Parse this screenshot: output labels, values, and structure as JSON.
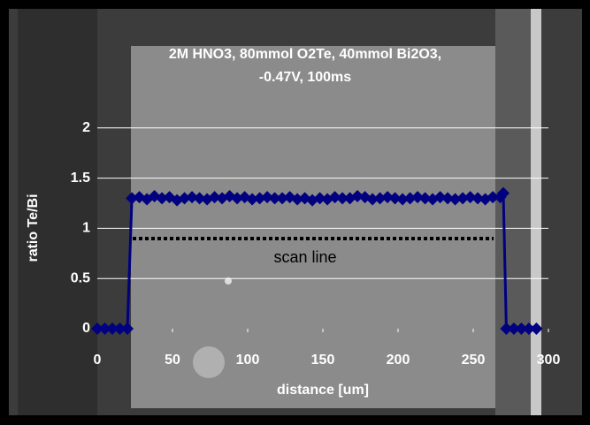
{
  "chart_data": {
    "type": "line",
    "title": [
      "2M HNO3, 80mmol O2Te, 40mmol Bi2O3,",
      "-0.47V, 100ms"
    ],
    "x_label": "distance [um]",
    "y_label": "ratio Te/Bi",
    "annotation": "scan line",
    "xlim": [
      0,
      300
    ],
    "xticks": [
      0,
      50,
      100,
      150,
      200,
      250,
      300
    ],
    "ylim": [
      0,
      2.5
    ],
    "yticks": [
      0,
      0.5,
      1,
      1.5,
      2
    ],
    "grid": true,
    "series": [
      {
        "name": "ratio Te/Bi",
        "color": "#000080",
        "x": [
          0,
          5,
          10,
          15,
          20,
          23,
          28,
          33,
          38,
          43,
          48,
          53,
          58,
          63,
          68,
          73,
          78,
          83,
          88,
          93,
          98,
          103,
          108,
          113,
          118,
          123,
          128,
          133,
          138,
          143,
          148,
          153,
          158,
          163,
          168,
          173,
          178,
          183,
          188,
          193,
          198,
          203,
          208,
          213,
          218,
          223,
          228,
          233,
          238,
          243,
          248,
          253,
          258,
          263,
          268,
          270,
          272,
          277,
          282,
          287,
          292
        ],
        "values": [
          0,
          0,
          0,
          0,
          0,
          1.3,
          1.31,
          1.29,
          1.32,
          1.3,
          1.31,
          1.28,
          1.3,
          1.31,
          1.3,
          1.29,
          1.31,
          1.3,
          1.32,
          1.3,
          1.31,
          1.29,
          1.3,
          1.31,
          1.3,
          1.3,
          1.31,
          1.29,
          1.3,
          1.28,
          1.3,
          1.29,
          1.31,
          1.3,
          1.3,
          1.32,
          1.31,
          1.29,
          1.3,
          1.31,
          1.3,
          1.29,
          1.3,
          1.31,
          1.3,
          1.29,
          1.31,
          1.3,
          1.29,
          1.3,
          1.31,
          1.3,
          1.29,
          1.31,
          1.31,
          1.35,
          0,
          0,
          0,
          0,
          0
        ]
      }
    ]
  }
}
